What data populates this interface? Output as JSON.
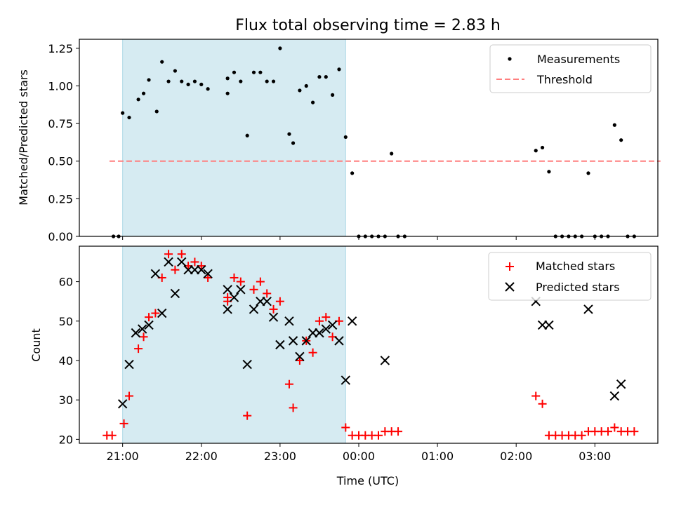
{
  "chart_data": {
    "title": "Flux total observing time = 2.83 h",
    "xlabel": "Time (UTC)",
    "x_unit": "hours (UTC clock)",
    "x_ticks": [
      "21:00",
      "22:00",
      "23:00",
      "00:00",
      "01:00",
      "02:00",
      "03:00"
    ],
    "shaded_interval": [
      "21:00",
      "23:50"
    ],
    "shaded_color": "#add8e6",
    "top": {
      "type": "scatter",
      "ylabel": "Matched/Predicted stars",
      "ylim": [
        0,
        1.31
      ],
      "yticks": [
        "0.00",
        "0.25",
        "0.50",
        "0.75",
        "1.00",
        "1.25"
      ],
      "threshold": {
        "name": "Threshold",
        "value": 0.5,
        "x_range": [
          "20:50",
          "03:50"
        ],
        "color": "#ff7f7f"
      },
      "series": [
        {
          "name": "Measurements",
          "color": "#000000",
          "x": [
            "20:53",
            "20:57",
            "21:00",
            "21:05",
            "21:12",
            "21:16",
            "21:20",
            "21:26",
            "21:30",
            "21:35",
            "21:40",
            "21:45",
            "21:50",
            "21:55",
            "22:00",
            "22:05",
            "22:20",
            "22:20",
            "22:25",
            "22:30",
            "22:35",
            "22:40",
            "22:45",
            "22:50",
            "22:55",
            "23:00",
            "23:07",
            "23:10",
            "23:15",
            "23:20",
            "23:25",
            "23:30",
            "23:35",
            "23:40",
            "23:45",
            "23:50",
            "23:55",
            "00:00",
            "00:05",
            "00:10",
            "00:15",
            "00:20",
            "00:25",
            "00:30",
            "00:35",
            "02:15",
            "02:20",
            "02:25",
            "02:30",
            "02:35",
            "02:40",
            "02:45",
            "02:50",
            "02:55",
            "03:00",
            "03:05",
            "03:10",
            "03:15",
            "03:20",
            "03:25",
            "03:30"
          ],
          "y": [
            0,
            0,
            0.82,
            0.79,
            0.91,
            0.95,
            1.04,
            0.83,
            1.16,
            1.03,
            1.1,
            1.03,
            1.01,
            1.03,
            1.01,
            0.98,
            0.95,
            1.05,
            1.09,
            1.03,
            0.67,
            1.09,
            1.09,
            1.03,
            1.03,
            1.25,
            0.68,
            0.62,
            0.97,
            1.0,
            0.89,
            1.06,
            1.06,
            0.94,
            1.11,
            0.66,
            0.42,
            0,
            0,
            0,
            0,
            0,
            0.55,
            0,
            0,
            0.57,
            0.59,
            0.43,
            0,
            0,
            0,
            0,
            0,
            0.42,
            0,
            0,
            0,
            0.74,
            0.64,
            0,
            0
          ]
        }
      ],
      "legend_position": "upper right"
    },
    "bottom": {
      "type": "scatter",
      "ylabel": "Count",
      "ylim": [
        19,
        69
      ],
      "yticks": [
        "20",
        "30",
        "40",
        "50",
        "60"
      ],
      "series": [
        {
          "name": "Matched stars",
          "marker": "+",
          "color": "#ff0000",
          "x": [
            "20:48",
            "20:52",
            "21:01",
            "21:05",
            "21:12",
            "21:16",
            "21:20",
            "21:25",
            "21:30",
            "21:35",
            "21:40",
            "21:45",
            "21:50",
            "21:55",
            "22:00",
            "22:05",
            "22:20",
            "22:20",
            "22:25",
            "22:30",
            "22:35",
            "22:40",
            "22:45",
            "22:50",
            "22:55",
            "23:00",
            "23:07",
            "23:10",
            "23:15",
            "23:20",
            "23:25",
            "23:30",
            "23:35",
            "23:40",
            "23:45",
            "23:50",
            "23:55",
            "00:00",
            "00:05",
            "00:10",
            "00:15",
            "00:20",
            "00:25",
            "00:30",
            "02:15",
            "02:20",
            "02:25",
            "02:30",
            "02:35",
            "02:40",
            "02:45",
            "02:50",
            "02:55",
            "03:00",
            "03:05",
            "03:10",
            "03:15",
            "03:20",
            "03:25",
            "03:30"
          ],
          "y": [
            21,
            21,
            24,
            31,
            43,
            46,
            51,
            52,
            61,
            67,
            63,
            67,
            64,
            65,
            64,
            61,
            55,
            56,
            61,
            60,
            26,
            58,
            60,
            57,
            53,
            55,
            34,
            28,
            40,
            45,
            42,
            50,
            51,
            46,
            50,
            23,
            21,
            21,
            21,
            21,
            21,
            22,
            22,
            22,
            31,
            29,
            21,
            21,
            21,
            21,
            21,
            21,
            22,
            22,
            22,
            22,
            23,
            22,
            22,
            22
          ]
        },
        {
          "name": "Predicted stars",
          "marker": "x",
          "color": "#000000",
          "x": [
            "21:00",
            "21:05",
            "21:10",
            "21:15",
            "21:20",
            "21:25",
            "21:30",
            "21:35",
            "21:40",
            "21:45",
            "21:50",
            "21:55",
            "22:00",
            "22:05",
            "22:20",
            "22:20",
            "22:25",
            "22:30",
            "22:35",
            "22:40",
            "22:45",
            "22:50",
            "22:55",
            "23:00",
            "23:07",
            "23:10",
            "23:15",
            "23:20",
            "23:25",
            "23:30",
            "23:35",
            "23:40",
            "23:45",
            "23:50",
            "23:55",
            "00:20",
            "02:15",
            "02:20",
            "02:25",
            "02:55",
            "03:15",
            "03:20"
          ],
          "y": [
            29,
            39,
            47,
            48,
            49,
            62,
            52,
            65,
            57,
            65,
            63,
            63,
            63,
            62,
            53,
            58,
            56,
            58,
            39,
            53,
            55,
            55,
            51,
            44,
            50,
            45,
            41,
            45,
            47,
            47,
            48,
            49,
            45,
            35,
            50,
            40,
            55,
            49,
            49,
            53,
            31,
            34
          ]
        }
      ],
      "legend_position": "upper right"
    }
  }
}
